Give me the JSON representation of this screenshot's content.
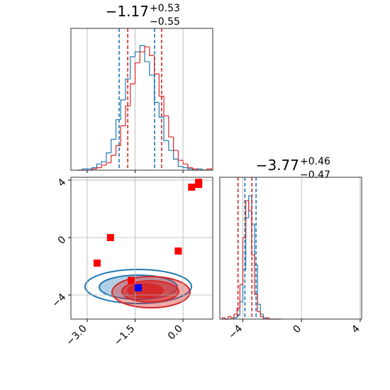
{
  "chart_data": [
    {
      "type": "histogram",
      "title": {
        "value": "−1.17",
        "plus": "+0.53",
        "minus": "−0.55"
      },
      "bins": [
        -3.3,
        -3.15,
        -3.0,
        -2.85,
        -2.7,
        -2.55,
        -2.4,
        -2.25,
        -2.1,
        -1.95,
        -1.8,
        -1.65,
        -1.5,
        -1.35,
        -1.2,
        -1.05,
        -0.9,
        -0.75,
        -0.6,
        -0.45,
        -0.3,
        -0.15,
        0,
        0.15,
        0.3,
        0.45,
        0.6,
        0.75,
        0.9
      ],
      "series": [
        {
          "color": "#1f77b4",
          "values": [
            0,
            1,
            1,
            2,
            5,
            7,
            14,
            25,
            41,
            57,
            74,
            92,
            96,
            101,
            88,
            77,
            55,
            43,
            24,
            16,
            9,
            3,
            2,
            1,
            0,
            1,
            0,
            0
          ],
          "quantiles": [
            -2.0,
            -0.89
          ]
        },
        {
          "color": "#d62728",
          "values": [
            0,
            0,
            0,
            1,
            2,
            4,
            6,
            12,
            20,
            36,
            52,
            70,
            87,
            96,
            100,
            93,
            78,
            60,
            44,
            27,
            16,
            8,
            5,
            2,
            1,
            0,
            0,
            1
          ],
          "quantiles": [
            -1.73,
            -0.67
          ]
        }
      ],
      "xlim": [
        -3.51,
        0.93
      ],
      "xticks": [
        -3,
        -1.5,
        0
      ],
      "ylim": [
        0,
        115
      ],
      "grid": true
    },
    {
      "type": "scatter",
      "series": [
        {
          "color": "#ff0000",
          "x": [
            -2.69,
            -2.27,
            -0.15,
            0.27,
            0.49,
            0.49,
            -1.62
          ],
          "y": [
            -1.78,
            0.0,
            -0.94,
            3.51,
            3.7,
            3.85,
            -2.98
          ]
        },
        {
          "color": "#0000ff",
          "x": [
            -1.4
          ],
          "y": [
            -3.5
          ]
        }
      ],
      "xlim": [
        -3.51,
        0.93
      ],
      "ylim": [
        -5.68,
        4.2
      ],
      "xticks": [
        {
          "value": -3,
          "label": "−3.0"
        },
        {
          "value": -1.5,
          "label": "−1.5"
        },
        {
          "value": 0,
          "label": "0.0"
        }
      ],
      "yticks": [
        {
          "value": -4,
          "label": "−4"
        },
        0,
        4
      ],
      "grid": true
    },
    {
      "type": "histogram",
      "title": {
        "value": "−3.77",
        "plus": "+0.46",
        "minus": "−0.47"
      },
      "bins": [
        -5.4,
        -5.2,
        -5.0,
        -4.8,
        -4.6,
        -4.4,
        -4.2,
        -4.0,
        -3.8,
        -3.6,
        -3.4,
        -3.2,
        -3.0,
        -2.8,
        -2.6,
        -2.4,
        -2.2,
        -2.0,
        -1.8,
        -1.6,
        -1.4
      ],
      "series": [
        {
          "color": "#1f77b4",
          "values": [
            0,
            0,
            0,
            0,
            1,
            3,
            14,
            40,
            82,
            100,
            77,
            44,
            12,
            4,
            1,
            0,
            0,
            0,
            0,
            0
          ],
          "quantiles": [
            -3.86,
            -3.1
          ]
        },
        {
          "color": "#d62728",
          "values": [
            1,
            0,
            2,
            1,
            4,
            9,
            28,
            66,
            96,
            88,
            52,
            20,
            6,
            2,
            0,
            1,
            0,
            0,
            0,
            0
          ],
          "quantiles": [
            -4.33,
            -3.38
          ]
        }
      ],
      "xlim": [
        -5.57,
        4.1
      ],
      "xticks": [
        {
          "value": -4,
          "label": "−4"
        },
        0,
        4
      ],
      "ylim": [
        0,
        115
      ],
      "grid": true
    }
  ]
}
